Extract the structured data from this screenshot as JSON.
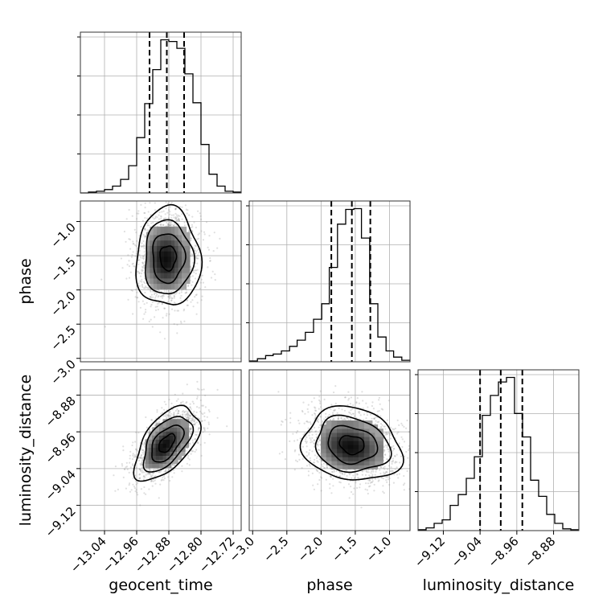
{
  "chart_data": {
    "type": "corner",
    "parameters": [
      "geocent_time",
      "phase",
      "luminosity_distance"
    ],
    "grid": true,
    "ranges": {
      "geocent_time": [
        -13.1,
        -12.7
      ],
      "phase": [
        -3.05,
        -0.7
      ],
      "luminosity_distance": [
        -9.175,
        -8.825
      ]
    },
    "ticks": {
      "geocent_time": {
        "values": [
          -13.04,
          -12.96,
          -12.88,
          -12.8,
          -12.72
        ],
        "labels": [
          "−13.04",
          "−12.96",
          "−12.88",
          "−12.80",
          "−12.72"
        ]
      },
      "phase": {
        "values": [
          -3.0,
          -2.5,
          -2.0,
          -1.5,
          -1.0
        ],
        "labels": [
          "−3.0",
          "−2.5",
          "−2.0",
          "−1.5",
          "−1.0"
        ]
      },
      "luminosity_distance": {
        "values": [
          -9.12,
          -9.04,
          -8.96,
          -8.88
        ],
        "labels": [
          "−9.12",
          "−9.04",
          "−8.96",
          "−8.88"
        ]
      }
    },
    "histograms": {
      "geocent_time": {
        "bin_edges": [
          -13.1,
          -13.08,
          -13.06,
          -13.04,
          -13.02,
          -13.0,
          -12.98,
          -12.96,
          -12.94,
          -12.92,
          -12.9,
          -12.88,
          -12.86,
          -12.84,
          -12.82,
          -12.8,
          -12.78,
          -12.76,
          -12.74,
          -12.72,
          -12.7
        ],
        "counts": [
          0,
          1,
          2,
          4,
          8,
          16,
          32,
          65,
          105,
          145,
          180,
          178,
          170,
          140,
          106,
          57,
          22,
          8,
          2,
          1
        ],
        "quantiles": [
          -12.928,
          -12.885,
          -12.842
        ]
      },
      "phase": {
        "bin_edges": [
          -3.05,
          -2.93,
          -2.81,
          -2.7,
          -2.58,
          -2.46,
          -2.35,
          -2.23,
          -2.11,
          -1.99,
          -1.88,
          -1.76,
          -1.64,
          -1.52,
          -1.41,
          -1.29,
          -1.17,
          -1.05,
          -0.94,
          -0.82,
          -0.7
        ],
        "counts": [
          1,
          4,
          8,
          10,
          14,
          20,
          28,
          38,
          55,
          75,
          122,
          178,
          197,
          198,
          160,
          75,
          32,
          14,
          6,
          2
        ],
        "quantiles": [
          -1.85,
          -1.55,
          -1.28
        ]
      },
      "luminosity_distance": {
        "bin_edges": [
          -9.175,
          -9.1575,
          -9.14,
          -9.1225,
          -9.105,
          -9.0875,
          -9.07,
          -9.0525,
          -9.035,
          -9.0175,
          -9.0,
          -8.9825,
          -8.965,
          -8.9475,
          -8.93,
          -8.9125,
          -8.895,
          -8.8775,
          -8.86,
          -8.8425,
          -8.825
        ],
        "counts": [
          1,
          3,
          8,
          12,
          28,
          40,
          58,
          82,
          128,
          150,
          165,
          170,
          130,
          104,
          56,
          38,
          18,
          8,
          2,
          1
        ],
        "quantiles": [
          -9.04,
          -8.995,
          -8.948
        ]
      }
    },
    "joint": [
      {
        "x": "geocent_time",
        "y": "phase",
        "mean": [
          -12.882,
          -1.53
        ],
        "std": [
          0.04,
          0.36
        ],
        "rho": 0.0
      },
      {
        "x": "geocent_time",
        "y": "luminosity_distance",
        "mean": [
          -12.885,
          -8.985
        ],
        "std": [
          0.04,
          0.04
        ],
        "rho": 0.55
      },
      {
        "x": "phase",
        "y": "luminosity_distance",
        "mean": [
          -1.55,
          -8.988
        ],
        "std": [
          0.36,
          0.04
        ],
        "rho": -0.15
      }
    ],
    "contour_levels_sigma": [
      0.5,
      1.0,
      1.5,
      2.0
    ]
  },
  "axis_labels": {
    "geocent_time": "geocent_time",
    "phase": "phase",
    "luminosity_distance": "luminosity_distance"
  },
  "colors": {
    "line": "#000000",
    "grid": "#b0b0b0",
    "scatter": "#8c8c8c",
    "background": "#ffffff"
  }
}
